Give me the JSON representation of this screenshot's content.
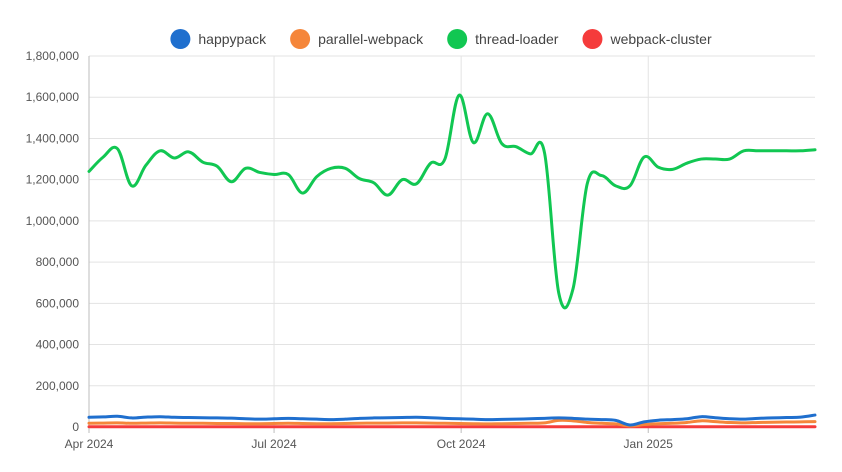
{
  "chart_data": {
    "type": "line",
    "x": [
      "2024-04-01",
      "2024-04-08",
      "2024-04-15",
      "2024-04-22",
      "2024-04-29",
      "2024-05-06",
      "2024-05-13",
      "2024-05-20",
      "2024-05-27",
      "2024-06-03",
      "2024-06-10",
      "2024-06-17",
      "2024-06-24",
      "2024-07-01",
      "2024-07-08",
      "2024-07-15",
      "2024-07-22",
      "2024-07-29",
      "2024-08-05",
      "2024-08-12",
      "2024-08-19",
      "2024-08-26",
      "2024-09-02",
      "2024-09-09",
      "2024-09-16",
      "2024-09-23",
      "2024-09-30",
      "2024-10-07",
      "2024-10-14",
      "2024-10-21",
      "2024-10-28",
      "2024-11-04",
      "2024-11-11",
      "2024-11-18",
      "2024-11-25",
      "2024-12-02",
      "2024-12-09",
      "2024-12-16",
      "2024-12-23",
      "2024-12-30",
      "2025-01-06",
      "2025-01-13",
      "2025-01-20",
      "2025-01-27",
      "2025-02-03",
      "2025-02-10",
      "2025-02-17",
      "2025-02-24",
      "2025-03-03",
      "2025-03-10",
      "2025-03-17",
      "2025-03-24"
    ],
    "series": [
      {
        "name": "happypack",
        "color": "#1f6fce",
        "values": [
          47000,
          49000,
          52000,
          44000,
          48000,
          50000,
          47000,
          46000,
          45000,
          44000,
          43000,
          40000,
          38000,
          40000,
          42000,
          40000,
          38000,
          36000,
          38000,
          42000,
          44000,
          45000,
          46000,
          47000,
          45000,
          42000,
          40000,
          38000,
          36000,
          37000,
          38000,
          40000,
          42000,
          44000,
          42000,
          38000,
          36000,
          32000,
          10000,
          25000,
          33000,
          36000,
          40000,
          50000,
          45000,
          40000,
          38000,
          42000,
          44000,
          46000,
          48000,
          58000
        ]
      },
      {
        "name": "parallel-webpack",
        "color": "#f5863a",
        "values": [
          18000,
          19000,
          20000,
          18000,
          19000,
          20000,
          19000,
          18000,
          18000,
          17000,
          17000,
          16000,
          16000,
          17000,
          18000,
          17000,
          16000,
          16000,
          17000,
          18000,
          19000,
          19000,
          20000,
          20000,
          19000,
          18000,
          17000,
          16000,
          15000,
          16000,
          17000,
          18000,
          20000,
          32000,
          30000,
          22000,
          18000,
          15000,
          5000,
          12000,
          16000,
          18000,
          22000,
          30000,
          26000,
          22000,
          20000,
          22000,
          23000,
          24000,
          25000,
          26000
        ]
      },
      {
        "name": "thread-loader",
        "color": "#11c752",
        "values": [
          1240000,
          1310000,
          1350000,
          1170000,
          1270000,
          1340000,
          1305000,
          1335000,
          1285000,
          1265000,
          1190000,
          1255000,
          1235000,
          1225000,
          1225000,
          1135000,
          1215000,
          1255000,
          1255000,
          1205000,
          1185000,
          1125000,
          1200000,
          1180000,
          1280000,
          1300000,
          1610000,
          1380000,
          1520000,
          1375000,
          1360000,
          1325000,
          1330000,
          650000,
          670000,
          1180000,
          1220000,
          1170000,
          1170000,
          1310000,
          1260000,
          1250000,
          1280000,
          1300000,
          1300000,
          1300000,
          1340000,
          1340000,
          1340000,
          1340000,
          1340000,
          1345000
        ]
      },
      {
        "name": "webpack-cluster",
        "color": "#f53b3b",
        "values": [
          1000,
          1000,
          1000,
          1000,
          1000,
          1000,
          1000,
          1000,
          1000,
          1000,
          1000,
          1000,
          1000,
          1000,
          1000,
          1000,
          1000,
          1000,
          1000,
          1000,
          1000,
          1000,
          1000,
          1000,
          1000,
          1000,
          1000,
          1000,
          1000,
          1000,
          1000,
          1000,
          1000,
          1000,
          1000,
          1000,
          1000,
          1000,
          1000,
          1000,
          1000,
          1000,
          1000,
          1000,
          1000,
          1000,
          1000,
          1000,
          1000,
          1000,
          1000,
          1000
        ]
      }
    ],
    "ylim": [
      0,
      1800000
    ],
    "y_ticks": [
      0,
      200000,
      400000,
      600000,
      800000,
      1000000,
      1200000,
      1400000,
      1600000,
      1800000
    ],
    "y_tick_labels": [
      "0",
      "200,000",
      "400,000",
      "600,000",
      "800,000",
      "1,000,000",
      "1,200,000",
      "1,400,000",
      "1,600,000",
      "1,800,000"
    ],
    "x_ticks": [
      "2024-04-01",
      "2024-07-01",
      "2024-10-01",
      "2025-01-01"
    ],
    "x_tick_labels": [
      "Apr 2024",
      "Jul 2024",
      "Oct 2024",
      "Jan 2025"
    ],
    "grid": true,
    "legend_position": "top-center"
  }
}
